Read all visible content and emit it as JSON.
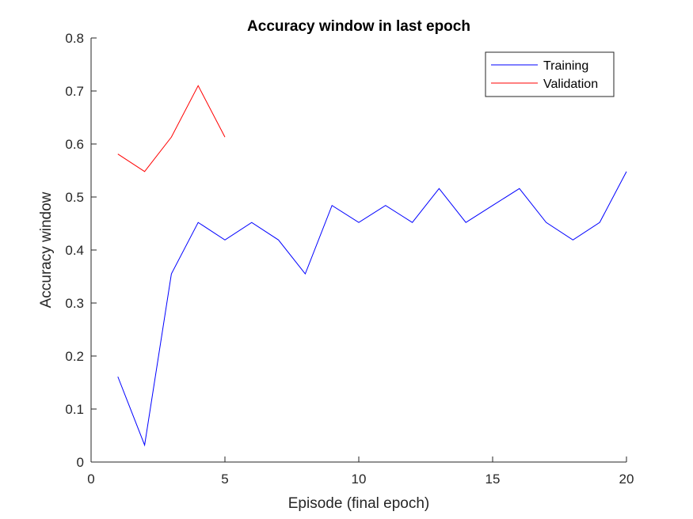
{
  "chart_data": {
    "type": "line",
    "title": "Accuracy window in last epoch",
    "xlabel": "Episode (final epoch)",
    "ylabel": "Accuracy window",
    "xlim": [
      0,
      20
    ],
    "ylim": [
      0,
      0.8
    ],
    "xticks": [
      0,
      5,
      10,
      15,
      20
    ],
    "yticks": [
      0,
      0.1,
      0.2,
      0.3,
      0.4,
      0.5,
      0.6,
      0.7,
      0.8
    ],
    "xtick_labels": [
      "0",
      "5",
      "10",
      "15",
      "20"
    ],
    "ytick_labels": [
      "0",
      "0.1",
      "0.2",
      "0.3",
      "0.4",
      "0.5",
      "0.6",
      "0.7",
      "0.8"
    ],
    "grid": false,
    "legend_position": "top-right",
    "series": [
      {
        "name": "Training",
        "color": "#0000ff",
        "x": [
          1,
          2,
          3,
          4,
          5,
          6,
          7,
          8,
          9,
          10,
          11,
          12,
          13,
          14,
          15,
          16,
          17,
          18,
          19,
          20
        ],
        "y": [
          0.161,
          0.032,
          0.355,
          0.452,
          0.419,
          0.452,
          0.419,
          0.355,
          0.484,
          0.452,
          0.484,
          0.452,
          0.516,
          0.452,
          0.484,
          0.516,
          0.452,
          0.419,
          0.452,
          0.548
        ]
      },
      {
        "name": "Validation",
        "color": "#ff0000",
        "x": [
          1,
          2,
          3,
          4,
          5
        ],
        "y": [
          0.581,
          0.548,
          0.613,
          0.71,
          0.613
        ]
      }
    ]
  }
}
